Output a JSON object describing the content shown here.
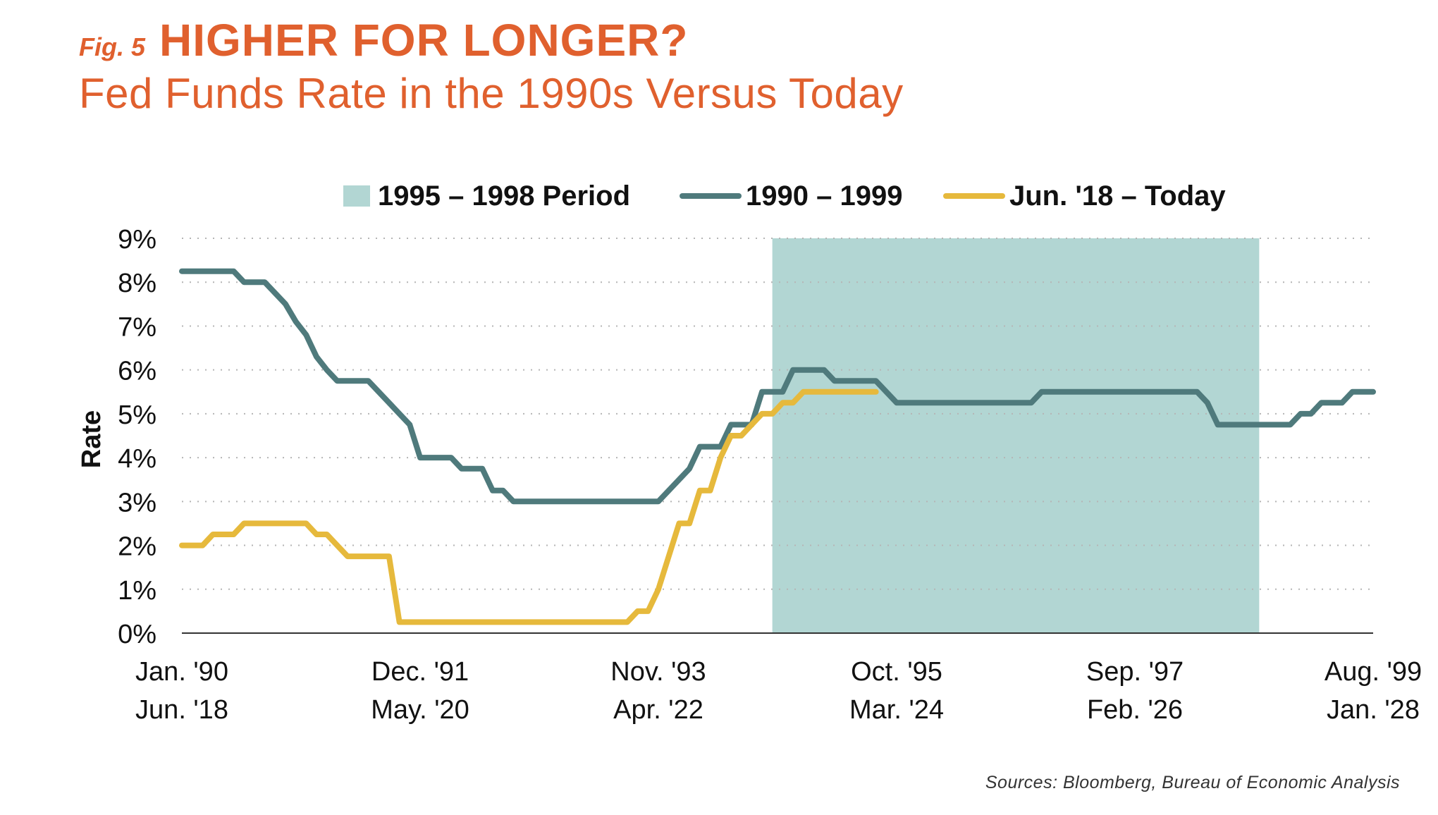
{
  "header": {
    "fig_label": "Fig. 5",
    "title": "HIGHER FOR LONGER?",
    "subtitle": "Fed Funds Rate in the 1990s Versus Today"
  },
  "source": "Sources: Bloomberg, Bureau of Economic Analysis",
  "colors": {
    "title": "#e0602e",
    "series_1990s": "#4f7a7c",
    "series_today": "#e6b93c",
    "shaded_period": "#b2d6d3",
    "grid": "#b5b5b5",
    "text": "#111111"
  },
  "chart_data": {
    "type": "line",
    "ylabel": "Rate",
    "xlabel": "",
    "ylim": [
      0,
      9
    ],
    "yticks": [
      "0%",
      "1%",
      "2%",
      "3%",
      "4%",
      "5%",
      "6%",
      "7%",
      "8%",
      "9%"
    ],
    "grid": "horizontal dotted",
    "legend_position": "top",
    "x_axis_unit": "months since start (Jan. '90 / Jun. '18)",
    "xlim": [
      0,
      115
    ],
    "x_ticks": [
      {
        "x": 0,
        "line1": "Jan. '90",
        "line2": "Jun. '18"
      },
      {
        "x": 23,
        "line1": "Dec. '91",
        "line2": "May. '20"
      },
      {
        "x": 46,
        "line1": "Nov. '93",
        "line2": "Apr. '22"
      },
      {
        "x": 69,
        "line1": "Oct. '95",
        "line2": "Mar. '24"
      },
      {
        "x": 92,
        "line1": "Sep. '97",
        "line2": "Feb. '26"
      },
      {
        "x": 115,
        "line1": "Aug. '99",
        "line2": "Jan. '28"
      }
    ],
    "shaded_region": {
      "name": "1995 – 1998 Period",
      "x_start": 57,
      "x_end": 104
    },
    "series": [
      {
        "name": "1990 – 1999",
        "color": "#4f7a7c",
        "points": [
          [
            0,
            8.25
          ],
          [
            5,
            8.25
          ],
          [
            6,
            8.0
          ],
          [
            8,
            8.0
          ],
          [
            9,
            7.75
          ],
          [
            10,
            7.5
          ],
          [
            11,
            7.1
          ],
          [
            12,
            6.8
          ],
          [
            13,
            6.3
          ],
          [
            14,
            6.0
          ],
          [
            15,
            5.75
          ],
          [
            18,
            5.75
          ],
          [
            19,
            5.5
          ],
          [
            20,
            5.25
          ],
          [
            21,
            5.0
          ],
          [
            22,
            4.75
          ],
          [
            23,
            4.0
          ],
          [
            26,
            4.0
          ],
          [
            27,
            3.75
          ],
          [
            29,
            3.75
          ],
          [
            30,
            3.25
          ],
          [
            31,
            3.25
          ],
          [
            32,
            3.0
          ],
          [
            46,
            3.0
          ],
          [
            47,
            3.25
          ],
          [
            48,
            3.5
          ],
          [
            49,
            3.75
          ],
          [
            50,
            4.25
          ],
          [
            51,
            4.25
          ],
          [
            52,
            4.25
          ],
          [
            53,
            4.75
          ],
          [
            54,
            4.75
          ],
          [
            55,
            4.75
          ],
          [
            56,
            5.5
          ],
          [
            58,
            5.5
          ],
          [
            59,
            6.0
          ],
          [
            62,
            6.0
          ],
          [
            63,
            5.75
          ],
          [
            67,
            5.75
          ],
          [
            68,
            5.5
          ],
          [
            69,
            5.25
          ],
          [
            82,
            5.25
          ],
          [
            83,
            5.5
          ],
          [
            98,
            5.5
          ],
          [
            99,
            5.25
          ],
          [
            100,
            4.75
          ],
          [
            107,
            4.75
          ],
          [
            108,
            5.0
          ],
          [
            109,
            5.0
          ],
          [
            110,
            5.25
          ],
          [
            112,
            5.25
          ],
          [
            113,
            5.5
          ],
          [
            115,
            5.5
          ]
        ]
      },
      {
        "name": "Jun. '18 – Today",
        "color": "#e6b93c",
        "points": [
          [
            0,
            2.0
          ],
          [
            2,
            2.0
          ],
          [
            3,
            2.25
          ],
          [
            5,
            2.25
          ],
          [
            6,
            2.5
          ],
          [
            12,
            2.5
          ],
          [
            13,
            2.25
          ],
          [
            14,
            2.25
          ],
          [
            15,
            2.0
          ],
          [
            16,
            1.75
          ],
          [
            20,
            1.75
          ],
          [
            21,
            0.25
          ],
          [
            43,
            0.25
          ],
          [
            44,
            0.5
          ],
          [
            45,
            0.5
          ],
          [
            46,
            1.0
          ],
          [
            47,
            1.75
          ],
          [
            48,
            2.5
          ],
          [
            49,
            2.5
          ],
          [
            50,
            3.25
          ],
          [
            51,
            3.25
          ],
          [
            52,
            4.0
          ],
          [
            53,
            4.5
          ],
          [
            54,
            4.5
          ],
          [
            55,
            4.75
          ],
          [
            56,
            5.0
          ],
          [
            57,
            5.0
          ],
          [
            58,
            5.25
          ],
          [
            59,
            5.25
          ],
          [
            60,
            5.5
          ],
          [
            67,
            5.5
          ]
        ]
      }
    ]
  }
}
